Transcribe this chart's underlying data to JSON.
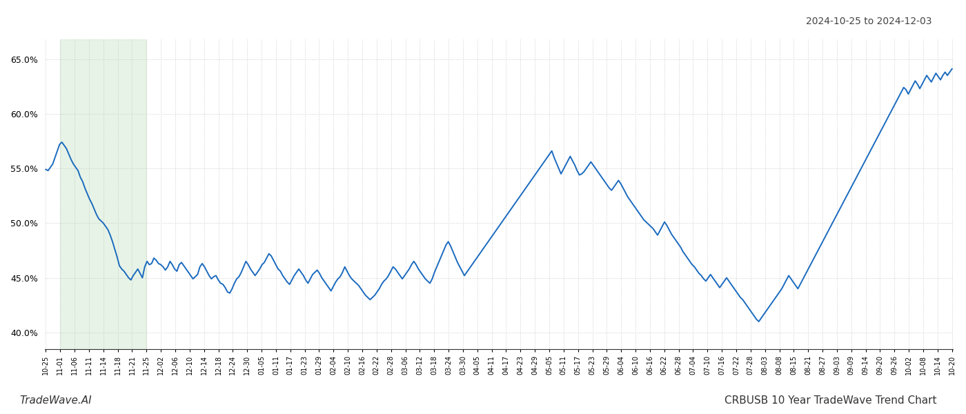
{
  "title_right": "2024-10-25 to 2024-12-03",
  "footer_left": "TradeWave.AI",
  "footer_right": "CRBUSB 10 Year TradeWave Trend Chart",
  "line_color": "#1a6abf",
  "line_width": 1.4,
  "shade_color": "#c8e6c9",
  "shade_alpha": 0.45,
  "ylim": [
    0.385,
    0.668
  ],
  "yticks": [
    0.4,
    0.45,
    0.5,
    0.55,
    0.6,
    0.65
  ],
  "background_color": "#ffffff",
  "grid_color": "#cccccc",
  "xtick_labels": [
    "10-25",
    "11-01",
    "11-06",
    "11-11",
    "11-14",
    "11-18",
    "11-21",
    "11-25",
    "12-02",
    "12-06",
    "12-10",
    "12-14",
    "12-18",
    "12-24",
    "12-30",
    "01-05",
    "01-11",
    "01-17",
    "01-23",
    "01-29",
    "02-04",
    "02-10",
    "02-16",
    "02-22",
    "02-28",
    "03-06",
    "03-12",
    "03-18",
    "03-24",
    "03-30",
    "04-05",
    "04-11",
    "04-17",
    "04-23",
    "04-29",
    "05-05",
    "05-11",
    "05-17",
    "05-23",
    "05-29",
    "06-04",
    "06-10",
    "06-16",
    "06-22",
    "06-28",
    "07-04",
    "07-10",
    "07-16",
    "07-22",
    "07-28",
    "08-03",
    "08-08",
    "08-15",
    "08-21",
    "08-27",
    "09-03",
    "09-09",
    "09-14",
    "09-20",
    "09-26",
    "10-02",
    "10-08",
    "10-14",
    "10-20"
  ],
  "shade_x_start_label": "11-01",
  "shade_x_end_label": "11-25",
  "y_values": [
    0.549,
    0.548,
    0.551,
    0.554,
    0.56,
    0.566,
    0.572,
    0.574,
    0.571,
    0.568,
    0.563,
    0.558,
    0.554,
    0.551,
    0.548,
    0.542,
    0.538,
    0.532,
    0.527,
    0.522,
    0.518,
    0.513,
    0.508,
    0.504,
    0.502,
    0.5,
    0.497,
    0.494,
    0.489,
    0.483,
    0.476,
    0.469,
    0.461,
    0.458,
    0.456,
    0.453,
    0.45,
    0.448,
    0.452,
    0.455,
    0.458,
    0.454,
    0.45,
    0.46,
    0.465,
    0.462,
    0.463,
    0.468,
    0.466,
    0.463,
    0.462,
    0.46,
    0.457,
    0.46,
    0.465,
    0.462,
    0.458,
    0.456,
    0.462,
    0.464,
    0.461,
    0.458,
    0.455,
    0.452,
    0.449,
    0.451,
    0.453,
    0.46,
    0.463,
    0.46,
    0.456,
    0.452,
    0.449,
    0.451,
    0.452,
    0.448,
    0.445,
    0.444,
    0.441,
    0.437,
    0.436,
    0.44,
    0.445,
    0.449,
    0.451,
    0.455,
    0.46,
    0.465,
    0.462,
    0.458,
    0.455,
    0.452,
    0.455,
    0.458,
    0.462,
    0.464,
    0.468,
    0.472,
    0.47,
    0.466,
    0.462,
    0.458,
    0.456,
    0.452,
    0.449,
    0.446,
    0.444,
    0.448,
    0.452,
    0.455,
    0.458,
    0.455,
    0.452,
    0.448,
    0.445,
    0.449,
    0.453,
    0.455,
    0.457,
    0.454,
    0.45,
    0.447,
    0.444,
    0.441,
    0.438,
    0.442,
    0.446,
    0.449,
    0.451,
    0.455,
    0.46,
    0.456,
    0.452,
    0.449,
    0.447,
    0.445,
    0.443,
    0.44,
    0.437,
    0.434,
    0.432,
    0.43,
    0.432,
    0.434,
    0.437,
    0.44,
    0.444,
    0.447,
    0.449,
    0.452,
    0.456,
    0.46,
    0.458,
    0.455,
    0.452,
    0.449,
    0.452,
    0.455,
    0.458,
    0.462,
    0.465,
    0.462,
    0.458,
    0.455,
    0.452,
    0.449,
    0.447,
    0.445,
    0.449,
    0.455,
    0.46,
    0.465,
    0.47,
    0.475,
    0.48,
    0.483,
    0.479,
    0.474,
    0.469,
    0.464,
    0.46,
    0.456,
    0.452,
    0.455,
    0.458,
    0.461,
    0.464,
    0.467,
    0.47,
    0.473,
    0.476,
    0.479,
    0.482,
    0.485,
    0.488,
    0.491,
    0.494,
    0.497,
    0.5,
    0.503,
    0.506,
    0.509,
    0.512,
    0.515,
    0.518,
    0.521,
    0.524,
    0.527,
    0.53,
    0.533,
    0.536,
    0.539,
    0.542,
    0.545,
    0.548,
    0.551,
    0.554,
    0.557,
    0.56,
    0.563,
    0.566,
    0.56,
    0.555,
    0.55,
    0.545,
    0.549,
    0.553,
    0.557,
    0.561,
    0.557,
    0.553,
    0.548,
    0.544,
    0.545,
    0.547,
    0.55,
    0.553,
    0.556,
    0.553,
    0.55,
    0.547,
    0.544,
    0.541,
    0.538,
    0.535,
    0.532,
    0.53,
    0.533,
    0.536,
    0.539,
    0.536,
    0.532,
    0.528,
    0.524,
    0.521,
    0.518,
    0.515,
    0.512,
    0.509,
    0.506,
    0.503,
    0.501,
    0.499,
    0.497,
    0.495,
    0.492,
    0.489,
    0.493,
    0.497,
    0.501,
    0.498,
    0.494,
    0.49,
    0.487,
    0.484,
    0.481,
    0.478,
    0.474,
    0.471,
    0.468,
    0.465,
    0.462,
    0.46,
    0.457,
    0.454,
    0.452,
    0.449,
    0.447,
    0.45,
    0.453,
    0.45,
    0.447,
    0.444,
    0.441,
    0.444,
    0.447,
    0.45,
    0.447,
    0.444,
    0.441,
    0.438,
    0.435,
    0.432,
    0.43,
    0.427,
    0.424,
    0.421,
    0.418,
    0.415,
    0.412,
    0.41,
    0.413,
    0.416,
    0.419,
    0.422,
    0.425,
    0.428,
    0.431,
    0.434,
    0.437,
    0.44,
    0.444,
    0.448,
    0.452,
    0.449,
    0.446,
    0.443,
    0.44,
    0.444,
    0.448,
    0.452,
    0.456,
    0.46,
    0.464,
    0.468,
    0.472,
    0.476,
    0.48,
    0.484,
    0.488,
    0.492,
    0.496,
    0.5,
    0.504,
    0.508,
    0.512,
    0.516,
    0.52,
    0.524,
    0.528,
    0.532,
    0.536,
    0.54,
    0.544,
    0.548,
    0.552,
    0.556,
    0.56,
    0.564,
    0.568,
    0.572,
    0.576,
    0.58,
    0.584,
    0.588,
    0.592,
    0.596,
    0.6,
    0.604,
    0.608,
    0.612,
    0.616,
    0.62,
    0.624,
    0.622,
    0.618,
    0.622,
    0.626,
    0.63,
    0.627,
    0.623,
    0.627,
    0.631,
    0.635,
    0.632,
    0.629,
    0.633,
    0.637,
    0.634,
    0.631,
    0.635,
    0.638,
    0.635,
    0.638,
    0.641
  ]
}
